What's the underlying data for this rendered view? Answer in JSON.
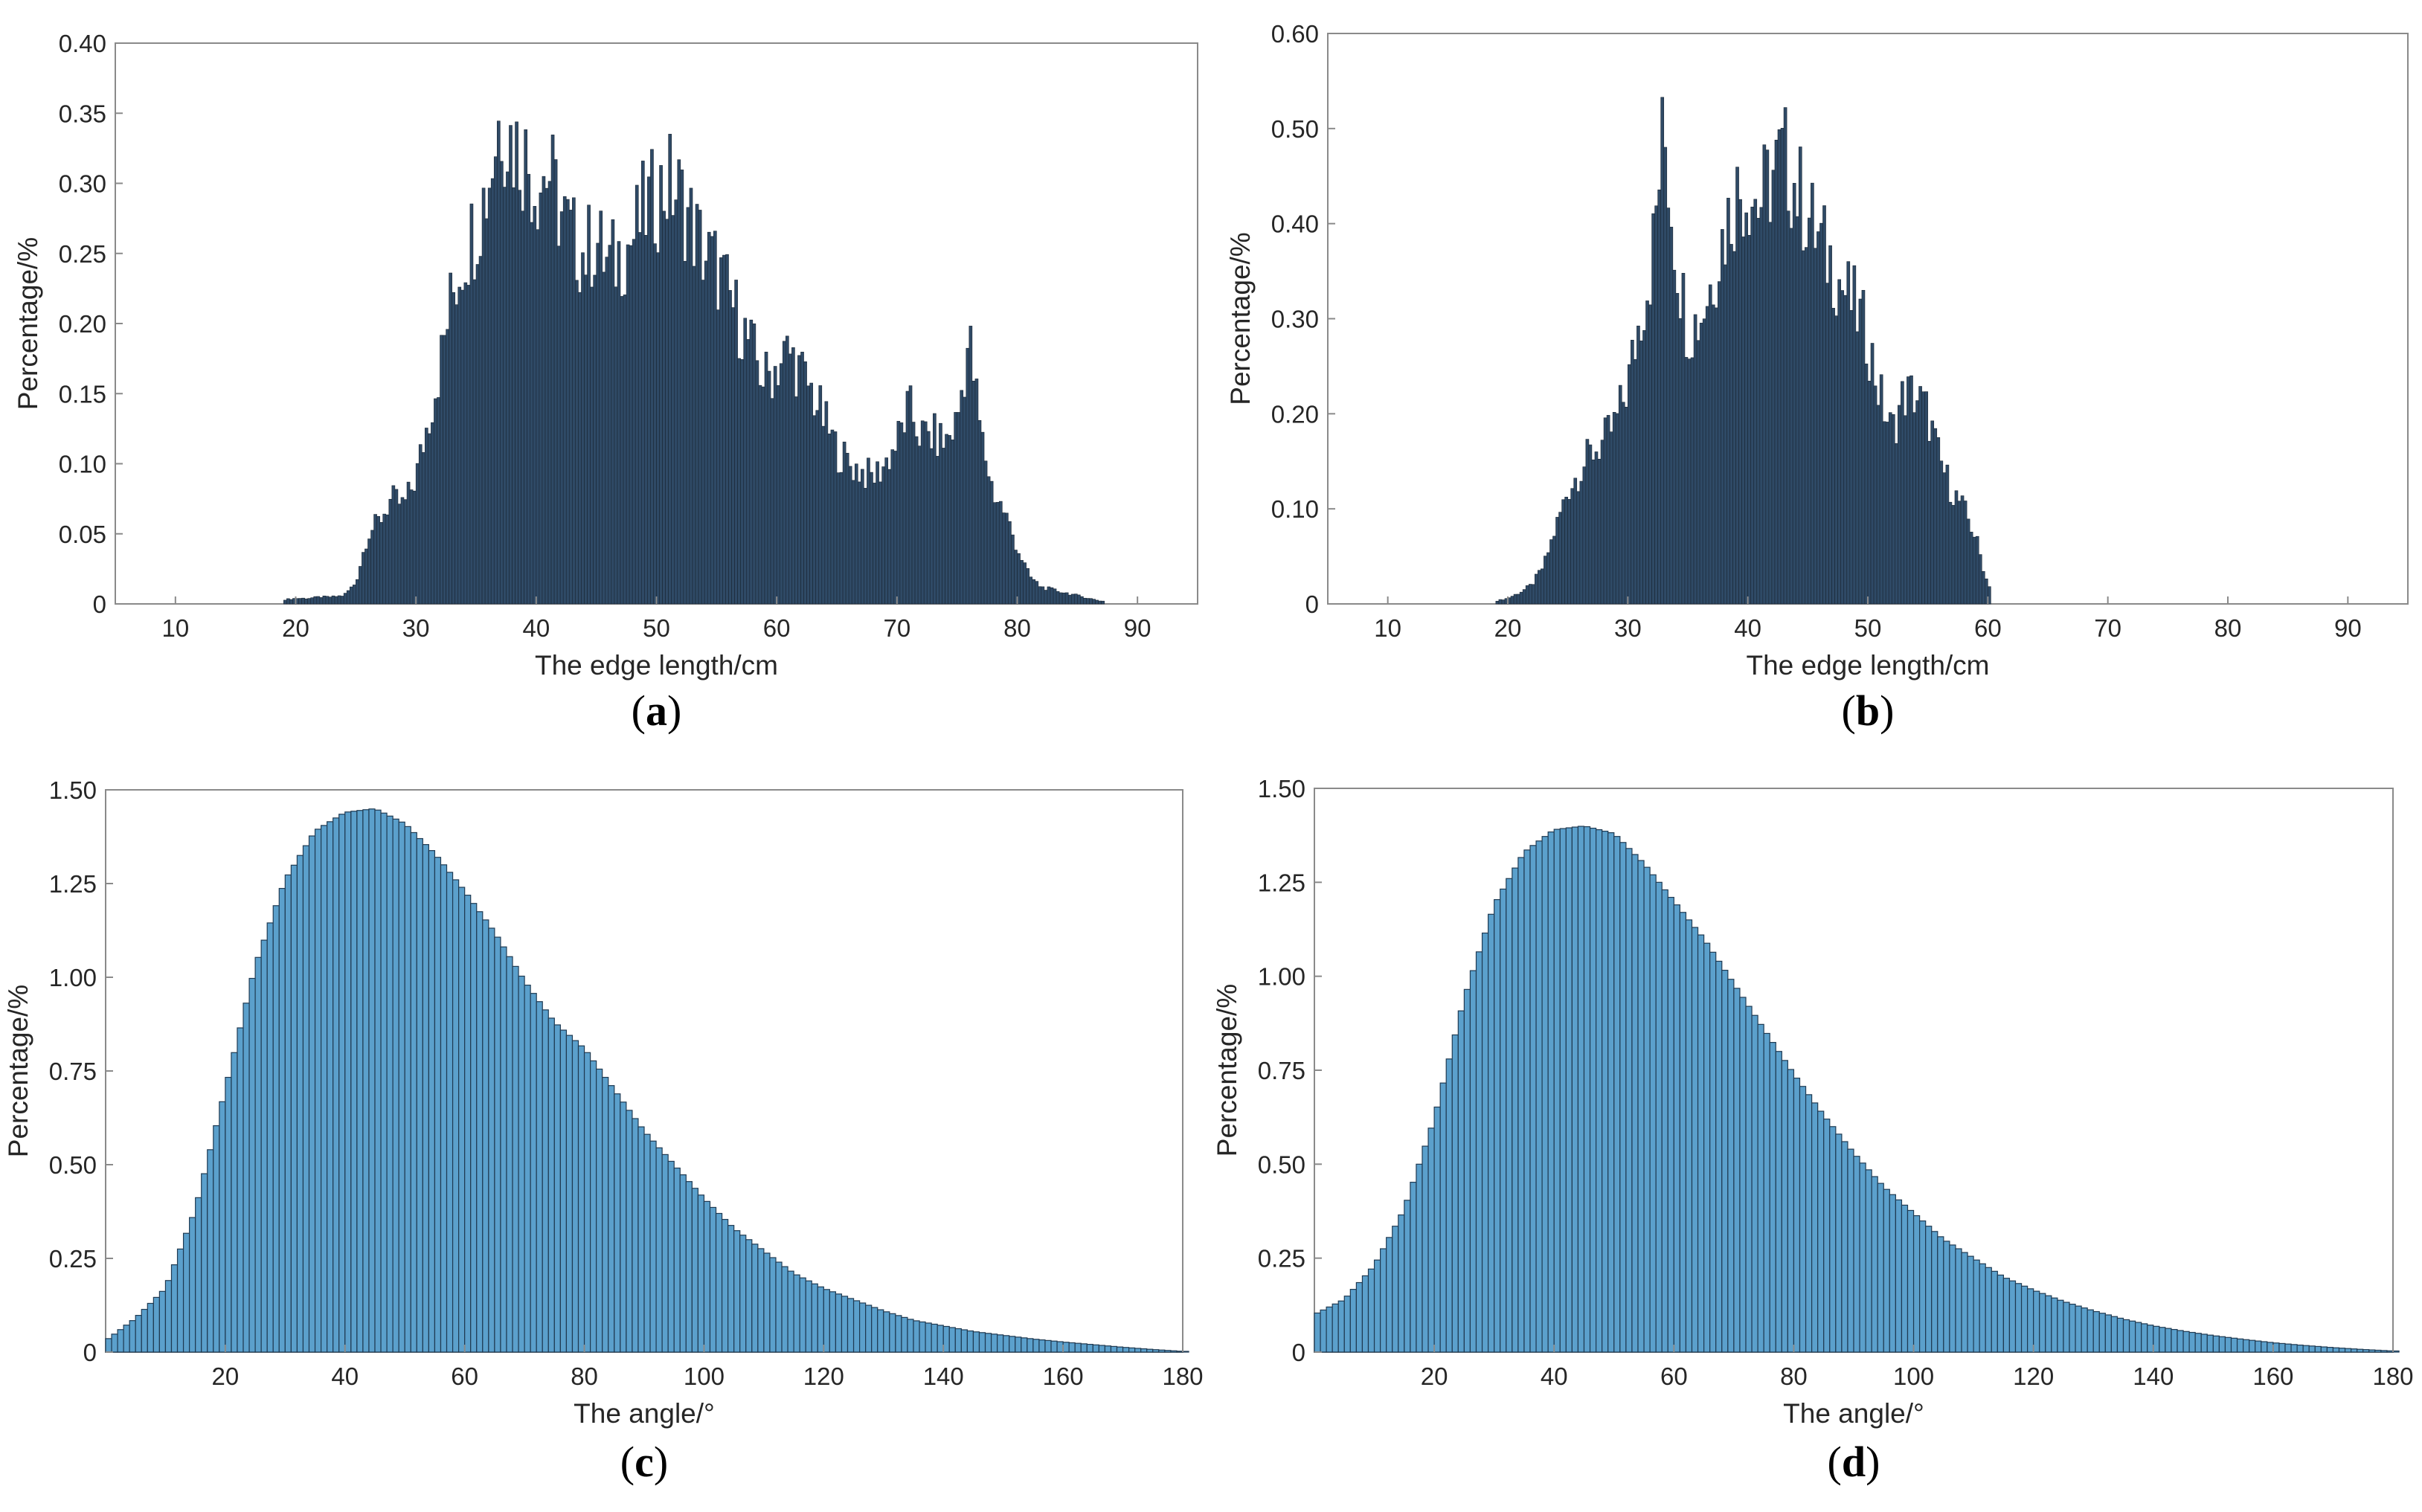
{
  "figure_title": "",
  "colors": {
    "bar_fill_dark": "#2f4a66",
    "bar_edge_dark": "#1a2633",
    "bar_fill_light": "#5ba0cc",
    "bar_edge_light": "#1f3a52",
    "axes": "#8a8a8a",
    "text": "#262626"
  },
  "chart_data": [
    {
      "id": "a",
      "type": "bar",
      "panel_label": "(a)",
      "panel_letter": "a",
      "xlabel": "The edge length/cm",
      "ylabel": "Percentage/%",
      "xlim": [
        5,
        95
      ],
      "ylim": [
        0,
        0.4
      ],
      "xticks": [
        10,
        20,
        30,
        40,
        50,
        60,
        70,
        80,
        90
      ],
      "yticks": [
        0,
        0.05,
        0.1,
        0.15,
        0.2,
        0.25,
        0.3,
        0.35,
        0.4
      ],
      "ytick_labels": [
        "0",
        "0.05",
        "0.10",
        "0.15",
        "0.20",
        "0.25",
        "0.30",
        "0.35",
        "0.40"
      ],
      "bin_width": 0.25,
      "style": "dark",
      "x": [
        19,
        20,
        21,
        22,
        23,
        24,
        25,
        26,
        27,
        28,
        29,
        30,
        31,
        32,
        33,
        34,
        35,
        36,
        37,
        38,
        39,
        40,
        41,
        42,
        43,
        44,
        45,
        46,
        47,
        48,
        49,
        50,
        51,
        52,
        53,
        54,
        55,
        56,
        57,
        58,
        59,
        60,
        61,
        62,
        63,
        64,
        65,
        66,
        67,
        68,
        69,
        70,
        71,
        72,
        73,
        74,
        75,
        76,
        77,
        78,
        79,
        80,
        81,
        82,
        83,
        84,
        85,
        86,
        87
      ],
      "values": [
        0.003,
        0.004,
        0.004,
        0.005,
        0.005,
        0.006,
        0.015,
        0.05,
        0.06,
        0.075,
        0.07,
        0.09,
        0.13,
        0.17,
        0.22,
        0.25,
        0.27,
        0.3,
        0.35,
        0.33,
        0.32,
        0.3,
        0.31,
        0.28,
        0.26,
        0.25,
        0.26,
        0.24,
        0.25,
        0.26,
        0.28,
        0.29,
        0.3,
        0.29,
        0.27,
        0.25,
        0.24,
        0.22,
        0.2,
        0.18,
        0.16,
        0.17,
        0.18,
        0.165,
        0.15,
        0.13,
        0.11,
        0.1,
        0.095,
        0.09,
        0.1,
        0.115,
        0.14,
        0.12,
        0.12,
        0.115,
        0.13,
        0.19,
        0.12,
        0.08,
        0.065,
        0.04,
        0.02,
        0.012,
        0.01,
        0.008,
        0.006,
        0.004,
        0.002
      ]
    },
    {
      "id": "b",
      "type": "bar",
      "panel_label": "(b)",
      "panel_letter": "b",
      "xlabel": "The edge length/cm",
      "ylabel": "Percentage/%",
      "xlim": [
        5,
        95
      ],
      "ylim": [
        0,
        0.6
      ],
      "xticks": [
        10,
        20,
        30,
        40,
        50,
        60,
        70,
        80,
        90
      ],
      "yticks": [
        0,
        0.1,
        0.2,
        0.3,
        0.4,
        0.5,
        0.6
      ],
      "ytick_labels": [
        "0",
        "0.10",
        "0.20",
        "0.30",
        "0.40",
        "0.50",
        "0.60"
      ],
      "bin_width": 0.25,
      "style": "dark",
      "x": [
        19,
        20,
        21,
        22,
        23,
        24,
        25,
        26,
        27,
        28,
        29,
        30,
        31,
        32,
        33,
        34,
        35,
        36,
        37,
        38,
        39,
        40,
        41,
        42,
        43,
        44,
        45,
        46,
        47,
        48,
        49,
        50,
        51,
        52,
        53,
        54,
        55,
        56,
        57,
        58,
        59,
        60
      ],
      "values": [
        0.003,
        0.006,
        0.012,
        0.02,
        0.04,
        0.08,
        0.12,
        0.14,
        0.16,
        0.17,
        0.19,
        0.23,
        0.3,
        0.36,
        0.5,
        0.37,
        0.29,
        0.3,
        0.34,
        0.39,
        0.43,
        0.44,
        0.42,
        0.45,
        0.47,
        0.44,
        0.41,
        0.38,
        0.36,
        0.33,
        0.31,
        0.28,
        0.22,
        0.18,
        0.22,
        0.22,
        0.2,
        0.15,
        0.12,
        0.1,
        0.07,
        0.02
      ]
    },
    {
      "id": "c",
      "type": "bar",
      "panel_label": "(c)",
      "panel_letter": "c",
      "xlabel": "The angle/°",
      "ylabel": "Percentage/%",
      "xlim": [
        0,
        180
      ],
      "ylim": [
        0,
        1.5
      ],
      "xticks": [
        20,
        40,
        60,
        80,
        100,
        120,
        140,
        160,
        180
      ],
      "yticks": [
        0,
        0.25,
        0.5,
        0.75,
        1.0,
        1.25,
        1.5
      ],
      "ytick_labels": [
        "0",
        "0.25",
        "0.50",
        "0.75",
        "1.00",
        "1.25",
        "1.50"
      ],
      "bin_width": 1,
      "style": "light",
      "x": [
        0,
        5,
        10,
        15,
        20,
        25,
        30,
        35,
        40,
        45,
        50,
        55,
        60,
        65,
        70,
        75,
        80,
        85,
        90,
        95,
        100,
        105,
        110,
        115,
        120,
        125,
        130,
        135,
        140,
        145,
        150,
        155,
        160,
        165,
        170,
        175,
        180
      ],
      "values": [
        0.03,
        0.09,
        0.17,
        0.38,
        0.7,
        1.03,
        1.26,
        1.39,
        1.44,
        1.45,
        1.41,
        1.33,
        1.23,
        1.12,
        0.99,
        0.88,
        0.81,
        0.7,
        0.59,
        0.5,
        0.41,
        0.33,
        0.27,
        0.21,
        0.17,
        0.14,
        0.11,
        0.085,
        0.07,
        0.055,
        0.045,
        0.035,
        0.027,
        0.02,
        0.013,
        0.007,
        0.002
      ]
    },
    {
      "id": "d",
      "type": "bar",
      "panel_label": "(d)",
      "panel_letter": "d",
      "xlabel": "The angle/°",
      "ylabel": "Percentage/%",
      "xlim": [
        0,
        180
      ],
      "ylim": [
        0,
        1.5
      ],
      "xticks": [
        20,
        40,
        60,
        80,
        100,
        120,
        140,
        160,
        180
      ],
      "yticks": [
        0,
        0.25,
        0.5,
        0.75,
        1.0,
        1.25,
        1.5
      ],
      "ytick_labels": [
        "0",
        "0.25",
        "0.50",
        "0.75",
        "1.00",
        "1.25",
        "1.50"
      ],
      "bin_width": 1,
      "style": "light",
      "x": [
        0,
        5,
        10,
        15,
        20,
        25,
        30,
        35,
        40,
        45,
        50,
        55,
        60,
        65,
        70,
        75,
        80,
        85,
        90,
        95,
        100,
        105,
        110,
        115,
        120,
        125,
        130,
        135,
        140,
        145,
        150,
        155,
        160,
        165,
        170,
        175,
        180
      ],
      "values": [
        0.1,
        0.14,
        0.23,
        0.38,
        0.62,
        0.94,
        1.19,
        1.33,
        1.39,
        1.4,
        1.38,
        1.3,
        1.2,
        1.1,
        0.98,
        0.86,
        0.74,
        0.63,
        0.53,
        0.44,
        0.37,
        0.3,
        0.25,
        0.2,
        0.165,
        0.135,
        0.11,
        0.088,
        0.07,
        0.056,
        0.044,
        0.034,
        0.025,
        0.018,
        0.012,
        0.007,
        0.003
      ]
    }
  ]
}
